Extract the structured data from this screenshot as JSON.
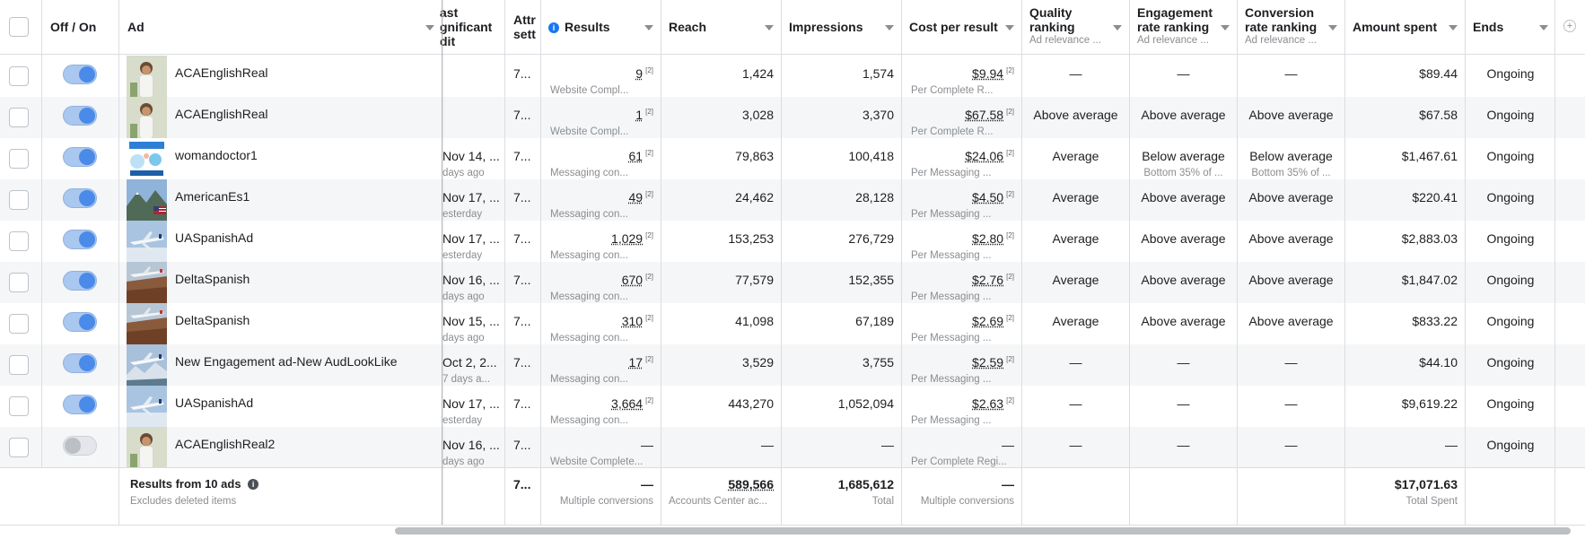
{
  "headers": {
    "off_on": "Off / On",
    "ad": "Ad",
    "last_edit_l1": "ast",
    "last_edit_l2": "gnificant",
    "last_edit_l3": "dit",
    "attribution_l1": "Attr",
    "attribution_l2": "sett",
    "results": "Results",
    "reach": "Reach",
    "impressions": "Impressions",
    "cost_per_result": "Cost per result",
    "quality_l1": "Quality",
    "quality_l2": "ranking",
    "quality_sub": "Ad relevance ...",
    "engagement_l1": "Engagement",
    "engagement_l2": "rate ranking",
    "engagement_sub": "Ad relevance ...",
    "conversion_l1": "Conversion",
    "conversion_l2": "rate ranking",
    "conversion_sub": "Ad relevance ...",
    "amount_spent": "Amount spent",
    "ends": "Ends"
  },
  "footnote": "[2]",
  "rows": [
    {
      "on": true,
      "thumb": "woman-portrait-thumbnail",
      "name": "ACAEnglishReal",
      "last_edit": "",
      "last_edit_sub": "",
      "attr": "7...",
      "results": "9",
      "results_sub": "Website Compl...",
      "reach": "1,424",
      "impressions": "1,574",
      "cost": "$9.94",
      "cost_sub": "Per Complete R...",
      "quality": "—",
      "engagement": "—",
      "engagement_sub": "",
      "conversion": "—",
      "conversion_sub": "",
      "spent": "$89.44",
      "ends": "Ongoing"
    },
    {
      "on": true,
      "thumb": "woman-portrait-thumbnail",
      "name": "ACAEnglishReal",
      "last_edit": "",
      "last_edit_sub": "",
      "attr": "7...",
      "results": "1",
      "results_sub": "Website Compl...",
      "reach": "3,028",
      "impressions": "3,370",
      "cost": "$67.58",
      "cost_sub": "Per Complete R...",
      "quality": "Above average",
      "engagement": "Above average",
      "engagement_sub": "",
      "conversion": "Above average",
      "conversion_sub": "",
      "spent": "$67.58",
      "ends": "Ongoing"
    },
    {
      "on": true,
      "thumb": "doctor-graphic-thumbnail",
      "name": "womandoctor1",
      "last_edit": "Nov 14, ...",
      "last_edit_sub": "days ago",
      "attr": "7...",
      "results": "61",
      "results_sub": "Messaging con...",
      "reach": "79,863",
      "impressions": "100,418",
      "cost": "$24.06",
      "cost_sub": "Per Messaging ...",
      "quality": "Average",
      "engagement": "Below average",
      "engagement_sub": "Bottom 35% of ...",
      "conversion": "Below average",
      "conversion_sub": "Bottom 35% of ...",
      "spent": "$1,467.61",
      "ends": "Ongoing"
    },
    {
      "on": true,
      "thumb": "mountain-flag-thumbnail",
      "name": "AmericanEs1",
      "last_edit": "Nov 17, ...",
      "last_edit_sub": "esterday",
      "attr": "7...",
      "results": "49",
      "results_sub": "Messaging con...",
      "reach": "24,462",
      "impressions": "28,128",
      "cost": "$4.50",
      "cost_sub": "Per Messaging ...",
      "quality": "Average",
      "engagement": "Above average",
      "engagement_sub": "",
      "conversion": "Above average",
      "conversion_sub": "",
      "spent": "$220.41",
      "ends": "Ongoing"
    },
    {
      "on": true,
      "thumb": "airplane-sky-thumbnail",
      "name": "UASpanishAd",
      "last_edit": "Nov 17, ...",
      "last_edit_sub": "esterday",
      "attr": "7...",
      "results": "1,029",
      "results_sub": "Messaging con...",
      "reach": "153,253",
      "impressions": "276,729",
      "cost": "$2.80",
      "cost_sub": "Per Messaging ...",
      "quality": "Average",
      "engagement": "Above average",
      "engagement_sub": "",
      "conversion": "Above average",
      "conversion_sub": "",
      "spent": "$2,883.03",
      "ends": "Ongoing"
    },
    {
      "on": true,
      "thumb": "airplane-canyon-thumbnail",
      "name": "DeltaSpanish",
      "last_edit": "Nov 16, ...",
      "last_edit_sub": "days ago",
      "attr": "7...",
      "results": "670",
      "results_sub": "Messaging con...",
      "reach": "77,579",
      "impressions": "152,355",
      "cost": "$2.76",
      "cost_sub": "Per Messaging ...",
      "quality": "Average",
      "engagement": "Above average",
      "engagement_sub": "",
      "conversion": "Above average",
      "conversion_sub": "",
      "spent": "$1,847.02",
      "ends": "Ongoing"
    },
    {
      "on": true,
      "thumb": "airplane-canyon-thumbnail",
      "name": "DeltaSpanish",
      "last_edit": "Nov 15, ...",
      "last_edit_sub": "days ago",
      "attr": "7...",
      "results": "310",
      "results_sub": "Messaging con...",
      "reach": "41,098",
      "impressions": "67,189",
      "cost": "$2.69",
      "cost_sub": "Per Messaging ...",
      "quality": "Average",
      "engagement": "Above average",
      "engagement_sub": "",
      "conversion": "Above average",
      "conversion_sub": "",
      "spent": "$833.22",
      "ends": "Ongoing"
    },
    {
      "on": true,
      "thumb": "airplane-mountain-thumbnail",
      "name": "New Engagement ad-New AudLookLike",
      "last_edit": "Oct 2, 2...",
      "last_edit_sub": "7 days a...",
      "attr": "7...",
      "results": "17",
      "results_sub": "Messaging con...",
      "reach": "3,529",
      "impressions": "3,755",
      "cost": "$2.59",
      "cost_sub": "Per Messaging ...",
      "quality": "—",
      "engagement": "—",
      "engagement_sub": "",
      "conversion": "—",
      "conversion_sub": "",
      "spent": "$44.10",
      "ends": "Ongoing"
    },
    {
      "on": true,
      "thumb": "airplane-sky-thumbnail",
      "name": "UASpanishAd",
      "last_edit": "Nov 17, ...",
      "last_edit_sub": "esterday",
      "attr": "7...",
      "results": "3,664",
      "results_sub": "Messaging con...",
      "reach": "443,270",
      "impressions": "1,052,094",
      "cost": "$2.63",
      "cost_sub": "Per Messaging ...",
      "quality": "—",
      "engagement": "—",
      "engagement_sub": "",
      "conversion": "—",
      "conversion_sub": "",
      "spent": "$9,619.22",
      "ends": "Ongoing"
    },
    {
      "on": false,
      "thumb": "woman-portrait-thumbnail",
      "name": "ACAEnglishReal2",
      "last_edit": "Nov 16, ...",
      "last_edit_sub": "days ago",
      "attr": "7...",
      "results": "—",
      "results_sub": "Website Complete...",
      "reach": "—",
      "impressions": "—",
      "cost": "—",
      "cost_sub": "Per Complete Regi...",
      "quality": "—",
      "engagement": "—",
      "engagement_sub": "",
      "conversion": "—",
      "conversion_sub": "",
      "spent": "—",
      "ends": "Ongoing"
    }
  ],
  "totals": {
    "label": "Results from 10 ads",
    "label_sub": "Excludes deleted items",
    "attr": "7...",
    "results": "—",
    "results_sub": "Multiple conversions",
    "reach": "589,566",
    "reach_sub": "Accounts Center ac...",
    "impressions": "1,685,612",
    "impressions_sub": "Total",
    "cost": "—",
    "cost_sub": "Multiple conversions",
    "spent": "$17,071.63",
    "spent_sub": "Total Spent"
  },
  "icons": {
    "info": "i",
    "add_column": "+"
  },
  "colors": {
    "toggle_on": "#4a8ae8",
    "info_blue": "#1877f2"
  }
}
